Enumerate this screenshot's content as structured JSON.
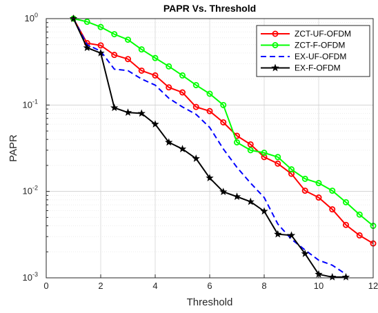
{
  "chart_data": {
    "type": "line",
    "title": "PAPR Vs. Threshold",
    "xlabel": "Threshold",
    "ylabel": "PAPR",
    "xlim": [
      0,
      12
    ],
    "ylim": [
      0.001,
      1
    ],
    "yscale": "log",
    "grid": true,
    "legend_position": "top-right",
    "xticks": [
      "0",
      "2",
      "4",
      "6",
      "8",
      "10",
      "12"
    ],
    "yticks": [
      {
        "base": "10",
        "exp": "0",
        "value": 1
      },
      {
        "base": "10",
        "exp": "-1",
        "value": 0.1
      },
      {
        "base": "10",
        "exp": "-2",
        "value": 0.01
      },
      {
        "base": "10",
        "exp": "-3",
        "value": 0.001
      }
    ],
    "series": [
      {
        "name": "ZCT-UF-OFDM",
        "color": "#ff0000",
        "marker": "circle",
        "dash": "solid",
        "x": [
          1,
          1.5,
          2,
          2.5,
          3,
          3.5,
          4,
          4.5,
          5,
          5.5,
          6,
          6.5,
          7,
          7.5,
          8,
          8.5,
          9,
          9.5,
          10,
          10.5,
          11,
          11.5,
          12
        ],
        "y": [
          1.0,
          0.52,
          0.49,
          0.38,
          0.34,
          0.25,
          0.22,
          0.16,
          0.14,
          0.095,
          0.085,
          0.063,
          0.044,
          0.035,
          0.025,
          0.021,
          0.016,
          0.0102,
          0.0085,
          0.0062,
          0.0041,
          0.0031,
          0.0025
        ]
      },
      {
        "name": "ZCT-F-OFDM",
        "color": "#00ff00",
        "marker": "circle",
        "dash": "solid",
        "x": [
          1,
          1.5,
          2,
          2.5,
          3,
          3.5,
          4,
          4.5,
          5,
          5.5,
          6,
          6.5,
          7,
          7.5,
          8,
          8.5,
          9,
          9.5,
          10,
          10.5,
          11,
          11.5,
          12
        ],
        "y": [
          1.0,
          0.92,
          0.8,
          0.66,
          0.57,
          0.44,
          0.35,
          0.28,
          0.22,
          0.17,
          0.135,
          0.1,
          0.037,
          0.03,
          0.028,
          0.025,
          0.018,
          0.014,
          0.0125,
          0.0102,
          0.0075,
          0.0054,
          0.004
        ]
      },
      {
        "name": "EX-UF-OFDM",
        "color": "#0000ff",
        "marker": "none",
        "dash": "dashed",
        "x": [
          1,
          1.5,
          2,
          2.5,
          3,
          3.5,
          4,
          4.5,
          5,
          5.5,
          6,
          6.5,
          7,
          7.5,
          8,
          8.5,
          9,
          9.5,
          10,
          10.5,
          11
        ],
        "y": [
          1.0,
          0.5,
          0.42,
          0.26,
          0.25,
          0.2,
          0.17,
          0.12,
          0.095,
          0.078,
          0.055,
          0.031,
          0.019,
          0.0125,
          0.0085,
          0.0042,
          0.0028,
          0.0021,
          0.0016,
          0.0014,
          0.0011
        ]
      },
      {
        "name": "EX-F-OFDM",
        "color": "#000000",
        "marker": "star",
        "dash": "solid",
        "x": [
          1,
          1.5,
          2,
          2.5,
          3,
          3.5,
          4,
          4.5,
          5,
          5.5,
          6,
          6.5,
          7,
          7.5,
          8,
          8.5,
          9,
          9.5,
          10,
          10.5,
          11
        ],
        "y": [
          1.0,
          0.46,
          0.4,
          0.093,
          0.082,
          0.08,
          0.06,
          0.037,
          0.031,
          0.024,
          0.0143,
          0.0099,
          0.0087,
          0.0076,
          0.0059,
          0.0032,
          0.0031,
          0.0019,
          0.0011,
          0.00102,
          0.00102
        ]
      }
    ]
  }
}
